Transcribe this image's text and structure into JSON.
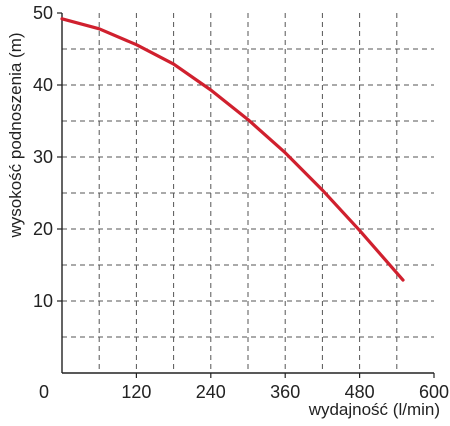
{
  "chart_data": {
    "type": "line",
    "title": "",
    "xlabel": "wydajność (l/min)",
    "ylabel": "wysokość podnoszenia (m)",
    "xlim": [
      0,
      600
    ],
    "ylim": [
      0,
      50
    ],
    "x_ticks": [
      120,
      240,
      360,
      480,
      600
    ],
    "x_tick_labels": [
      "120",
      "240",
      "360",
      "480",
      "600"
    ],
    "y_ticks": [
      10,
      20,
      30,
      40,
      50
    ],
    "y_tick_labels": [
      "10",
      "20",
      "30",
      "40",
      "50"
    ],
    "origin_label": "0",
    "grid": true,
    "grid_style": "dashed",
    "series": [
      {
        "color": "#d0202e",
        "x": [
          0,
          60,
          120,
          180,
          240,
          300,
          360,
          420,
          480,
          550
        ],
        "y": [
          49.2,
          47.8,
          45.6,
          42.9,
          39.3,
          35.2,
          30.6,
          25.4,
          19.8,
          12.9
        ]
      }
    ]
  }
}
